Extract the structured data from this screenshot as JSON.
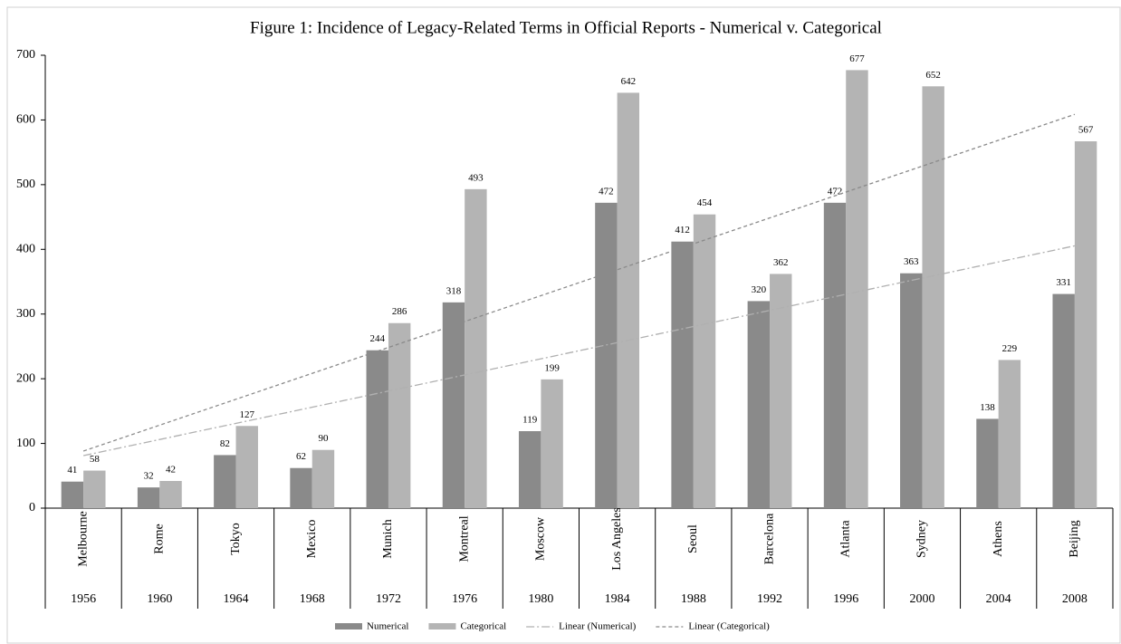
{
  "chart_data": {
    "type": "bar",
    "title": "Figure 1: Incidence of Legacy-Related Terms in Official Reports - Numerical v. Categorical",
    "categories": [
      "Melbourne",
      "Rome",
      "Tokyo",
      "Mexico",
      "Munich",
      "Montreal",
      "Moscow",
      "Los Angeles",
      "Seoul",
      "Barcelona",
      "Atlanta",
      "Sydney",
      "Athens",
      "Beijing"
    ],
    "years": [
      "1956",
      "1960",
      "1964",
      "1968",
      "1972",
      "1976",
      "1980",
      "1984",
      "1988",
      "1992",
      "1996",
      "2000",
      "2004",
      "2008"
    ],
    "series": [
      {
        "name": "Numerical",
        "color": "#8a8a8a",
        "values": [
          41,
          32,
          82,
          62,
          244,
          318,
          119,
          472,
          412,
          320,
          472,
          363,
          138,
          331
        ],
        "trendline": {
          "name": "Linear (Numerical)",
          "color": "#b0b0b0",
          "dash": "9,3,2,3"
        }
      },
      {
        "name": "Categorical",
        "color": "#b4b4b4",
        "values": [
          58,
          42,
          127,
          90,
          286,
          493,
          199,
          642,
          454,
          362,
          677,
          652,
          229,
          567
        ],
        "trendline": {
          "name": "Linear (Categorical)",
          "color": "#8a8a8a",
          "dash": "4,3"
        }
      }
    ],
    "ylim": [
      0,
      700
    ],
    "yticks": [
      0,
      100,
      200,
      300,
      400,
      500,
      600,
      700
    ],
    "grid": false,
    "legend": "bottom"
  }
}
